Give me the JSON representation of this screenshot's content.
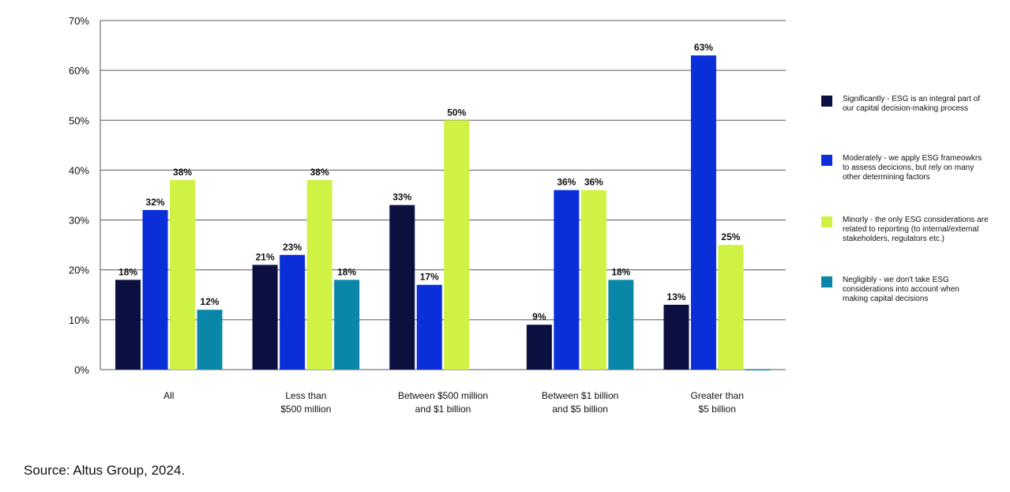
{
  "chart_data": {
    "type": "bar",
    "categories": [
      "All",
      "Less than\n$500 million",
      "Between $500 million\nand $1 billion",
      "Between $1 billion\nand $5 billion",
      "Greater than\n$5 billion"
    ],
    "series": [
      {
        "name": "Significantly - ESG is an integral part of\nour capital decision-making process",
        "color": "#0b1040",
        "values": [
          18,
          21,
          33,
          9,
          13
        ],
        "value_labels": [
          "18%",
          "21%",
          "33%",
          "9%",
          "13%"
        ]
      },
      {
        "name": "Moderately - we apply ESG frameowkrs\nto assess decicions, but rely on many\nother determining factors",
        "color": "#0a2fd8",
        "values": [
          32,
          23,
          17,
          36,
          63
        ],
        "value_labels": [
          "32%",
          "23%",
          "17%",
          "36%",
          "63%"
        ]
      },
      {
        "name": "Minorly - the only ESG considerations are\nrelated to reporting (to internal/external\nstakeholders, regulators etc.)",
        "color": "#cff244",
        "values": [
          38,
          38,
          50,
          36,
          25
        ],
        "value_labels": [
          "38%",
          "38%",
          "50%",
          "36%",
          "25%"
        ]
      },
      {
        "name": "Negligibly - we don't take ESG\nconsiderations into account when\nmaking capital decisions",
        "color": "#0a87a8",
        "values": [
          12,
          18,
          null,
          18,
          0
        ],
        "value_labels": [
          "12%",
          "18%",
          null,
          "18%",
          null
        ]
      }
    ],
    "ylim": [
      0,
      70
    ],
    "yticks": [
      {
        "value": 0,
        "label": "0%"
      },
      {
        "value": 10,
        "label": "10%"
      },
      {
        "value": 20,
        "label": "20%"
      },
      {
        "value": 30,
        "label": "30%"
      },
      {
        "value": 40,
        "label": "40%"
      },
      {
        "value": 50,
        "label": "50%"
      },
      {
        "value": 60,
        "label": "60%"
      },
      {
        "value": 70,
        "label": "70%"
      }
    ],
    "grid": true,
    "legend": "right",
    "source": "Source: Altus Group, 2024."
  }
}
